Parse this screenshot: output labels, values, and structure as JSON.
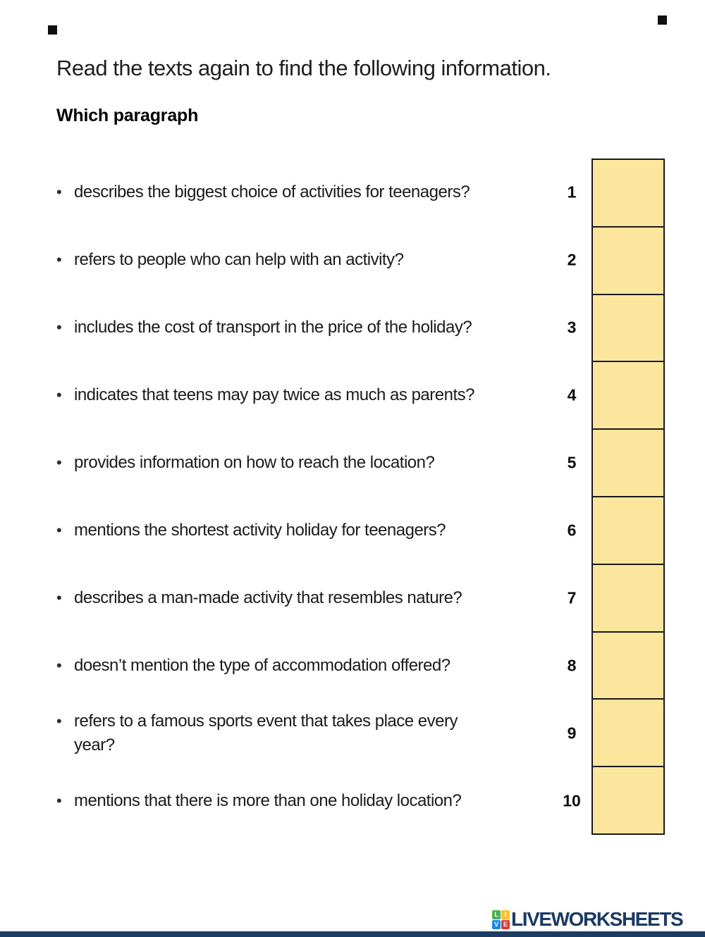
{
  "header": {
    "title": "Read the texts again to find the following information.",
    "subtitle": "Which paragraph"
  },
  "questions": [
    {
      "num": "1",
      "text": "describes the biggest choice of activities for teenagers?"
    },
    {
      "num": "2",
      "text": "refers to people who can help with an activity?"
    },
    {
      "num": "3",
      "text": "includes the cost of transport in the price of the holiday?"
    },
    {
      "num": "4",
      "text": "indicates that teens may pay twice as much as parents?"
    },
    {
      "num": "5",
      "text": "provides information on how to reach the location?"
    },
    {
      "num": "6",
      "text": "mentions the shortest activity holiday for teenagers?"
    },
    {
      "num": "7",
      "text": "describes a man-made activity that resembles nature?"
    },
    {
      "num": "8",
      "text": "doesn’t mention the type of accommodation offered?"
    },
    {
      "num": "9",
      "text": "refers to a famous sports event that takes place every\nyear?"
    },
    {
      "num": "10",
      "text": "mentions that there is more than one holiday location?"
    }
  ],
  "answer_boxes": {
    "count": 10,
    "value": "",
    "fill_color": "#FCE59C",
    "border_color": "#1A1A1A"
  },
  "footer": {
    "brand": "LIVEWORKSHEETS",
    "brand_color": "#1B3A63",
    "bar_color": "#1D3C64",
    "logo_squares": [
      {
        "letter": "L",
        "color": "#4CAF50"
      },
      {
        "letter": "I",
        "color": "#FBC02D"
      },
      {
        "letter": "V",
        "color": "#1E88E5"
      },
      {
        "letter": "E",
        "color": "#E53935"
      }
    ]
  }
}
